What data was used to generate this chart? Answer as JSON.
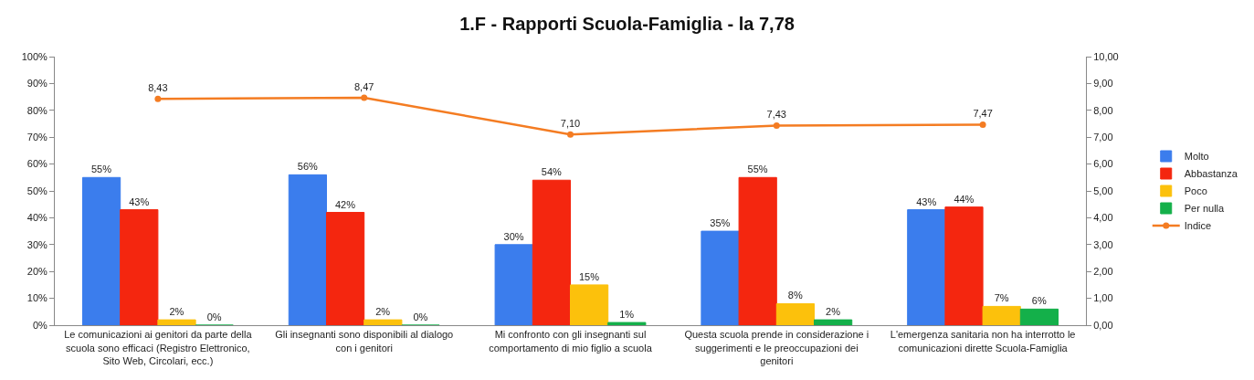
{
  "chart_data": {
    "type": "bar",
    "title": "1.F - Rapporti Scuola-Famiglia - la 7,78",
    "categories": [
      "Le comunicazioni ai genitori da parte della scuola sono efficaci (Registro Elettronico, Sito Web, Circolari, ecc.)",
      "Gli insegnanti sono disponibili al dialogo con i genitori",
      "Mi confronto con gli insegnanti sul comportamento di mio figlio a scuola",
      "Questa scuola prende in considerazione i suggerimenti e le preoccupazioni dei genitori",
      "L'emergenza sanitaria non ha interrotto le comunicazioni dirette Scuola-Famiglia"
    ],
    "series": [
      {
        "name": "Molto",
        "color": "#3b7ded",
        "values": [
          55,
          56,
          30,
          35,
          43
        ],
        "value_labels": [
          "55%",
          "56%",
          "30%",
          "35%",
          "43%"
        ]
      },
      {
        "name": "Abbastanza",
        "color": "#f4260f",
        "values": [
          43,
          42,
          54,
          55,
          44
        ],
        "value_labels": [
          "43%",
          "42%",
          "54%",
          "55%",
          "44%"
        ]
      },
      {
        "name": "Poco",
        "color": "#fcc10c",
        "values": [
          2,
          2,
          15,
          8,
          7
        ],
        "value_labels": [
          "2%",
          "2%",
          "15%",
          "8%",
          "7%"
        ]
      },
      {
        "name": "Per nulla",
        "color": "#14b04a",
        "values": [
          0,
          0,
          1,
          2,
          6
        ],
        "value_labels": [
          "0%",
          "0%",
          "1%",
          "2%",
          "6%"
        ]
      },
      {
        "name": "Indice",
        "type": "line",
        "axis": "y2",
        "color": "#f47c22",
        "marker": "circle",
        "values": [
          8.43,
          8.47,
          7.1,
          7.43,
          7.47
        ],
        "value_labels": [
          "8,43",
          "8,47",
          "7,10",
          "7,43",
          "7,47"
        ]
      }
    ],
    "ylim": [
      0,
      100
    ],
    "yticks": [
      {
        "value": 0,
        "label": "0%"
      },
      {
        "value": 10,
        "label": "10%"
      },
      {
        "value": 20,
        "label": "20%"
      },
      {
        "value": 30,
        "label": "30%"
      },
      {
        "value": 40,
        "label": "40%"
      },
      {
        "value": 50,
        "label": "50%"
      },
      {
        "value": 60,
        "label": "60%"
      },
      {
        "value": 70,
        "label": "70%"
      },
      {
        "value": 80,
        "label": "80%"
      },
      {
        "value": 90,
        "label": "90%"
      },
      {
        "value": 100,
        "label": "100%"
      }
    ],
    "y2lim": [
      0,
      10
    ],
    "y2ticks": [
      {
        "value": 0,
        "label": "0,00"
      },
      {
        "value": 1,
        "label": "1,00"
      },
      {
        "value": 2,
        "label": "2,00"
      },
      {
        "value": 3,
        "label": "3,00"
      },
      {
        "value": 4,
        "label": "4,00"
      },
      {
        "value": 5,
        "label": "5,00"
      },
      {
        "value": 6,
        "label": "6,00"
      },
      {
        "value": 7,
        "label": "7,00"
      },
      {
        "value": 8,
        "label": "8,00"
      },
      {
        "value": 9,
        "label": "9,00"
      },
      {
        "value": 10,
        "label": "10,00"
      }
    ],
    "legend": "right"
  }
}
